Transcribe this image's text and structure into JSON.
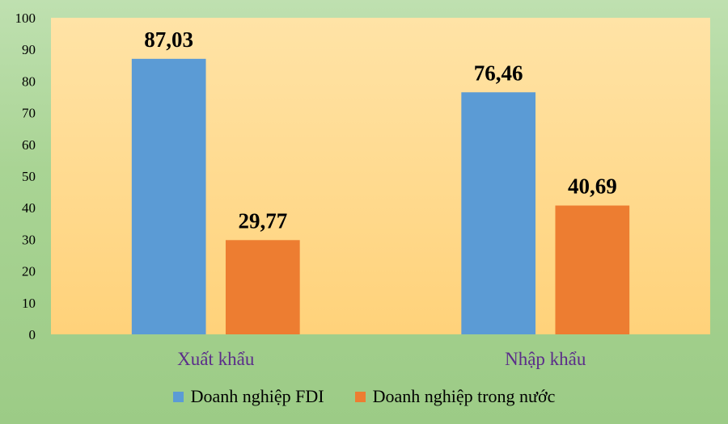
{
  "chart_data": {
    "type": "bar",
    "categories": [
      "Xuất khẩu",
      "Nhập khẩu"
    ],
    "series": [
      {
        "name": "Doanh nghiệp FDI",
        "values": [
          87.03,
          76.46
        ],
        "labels": [
          "87,03",
          "76,46"
        ],
        "color": "#5b9bd5"
      },
      {
        "name": "Doanh nghiệp trong nước",
        "values": [
          29.77,
          40.69
        ],
        "labels": [
          "29,77",
          "40,69"
        ],
        "color": "#ed7d31"
      }
    ],
    "yticks": [
      "0",
      "10",
      "20",
      "30",
      "40",
      "50",
      "60",
      "70",
      "80",
      "90",
      "100"
    ],
    "ylim": [
      0,
      100
    ],
    "grid": false,
    "legend_position": "bottom",
    "plot_background": "#ffd98a",
    "category_label_color": "#5b2d8a"
  }
}
